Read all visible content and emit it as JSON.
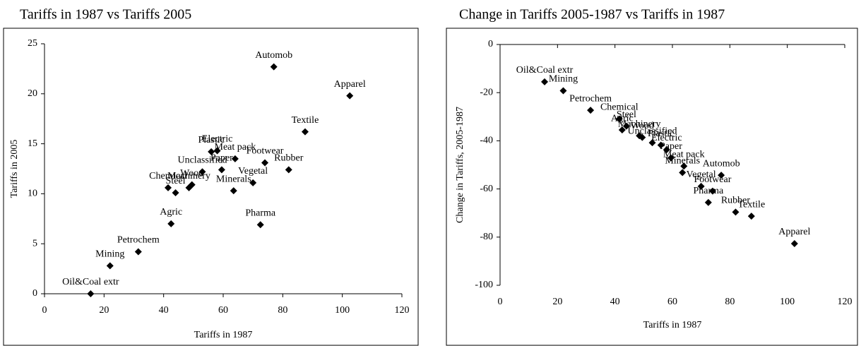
{
  "chart_data": [
    {
      "type": "scatter",
      "title": "Tariffs in 1987 vs Tariffs 2005",
      "xlabel": "Tariffs in 1987",
      "ylabel": "Tariffs in 2005",
      "color": "#000000",
      "labels": [
        "Oil&Coal extr",
        "Mining",
        "Petrochem",
        "Agric",
        "Chemical",
        "Steel",
        "Machinery",
        "Wood",
        "Unclassified",
        "Plastic",
        "Electric",
        "Paper",
        "Meat pack",
        "Minerals",
        "Vegetal",
        "Footwear",
        "Automob",
        "Pharma",
        "Rubber",
        "Textile",
        "Apparel"
      ],
      "x": [
        15.5,
        22,
        31.5,
        42.5,
        41.5,
        44,
        48.5,
        49.5,
        53,
        56,
        58,
        59.5,
        64,
        63.5,
        70,
        74,
        77,
        72.5,
        82,
        87.5,
        102.5
      ],
      "values": [
        0,
        2.8,
        4.2,
        7.0,
        10.6,
        10.1,
        10.6,
        10.9,
        12.2,
        14.2,
        14.3,
        12.4,
        13.5,
        10.3,
        11.1,
        13.1,
        22.7,
        6.9,
        12.4,
        16.2,
        19.8
      ],
      "xlim": [
        0,
        120
      ],
      "ylim": [
        0,
        25
      ],
      "xticks": [
        0,
        20,
        40,
        60,
        80,
        100,
        120
      ],
      "yticks": [
        0,
        5,
        10,
        15,
        20,
        25
      ]
    },
    {
      "type": "scatter",
      "title": "Change in Tariffs 2005-1987 vs Tariffs in 1987",
      "xlabel": "Tariffs in 1987",
      "ylabel": "Change in Tariffs, 2005-1987",
      "color": "#000000",
      "labels": [
        "Oil&Coal extr",
        "Mining",
        "Petrochem",
        "Agric",
        "Chemical",
        "Steel",
        "Machinery",
        "Wood",
        "Unclassified",
        "Plastic",
        "Electric",
        "Paper",
        "Meat pack",
        "Minerals",
        "Vegetal",
        "Footwear",
        "Automob",
        "Pharma",
        "Rubber",
        "Textile",
        "Apparel"
      ],
      "x": [
        15.5,
        22,
        31.5,
        42.5,
        41.5,
        44,
        48.5,
        49.5,
        53,
        56,
        58,
        59.5,
        64,
        63.5,
        70,
        74,
        77,
        72.5,
        82,
        87.5,
        102.5
      ],
      "values": [
        -15.5,
        -19.2,
        -27.3,
        -35.5,
        -30.9,
        -33.9,
        -37.9,
        -38.6,
        -40.8,
        -41.8,
        -43.7,
        -47.1,
        -50.5,
        -53.2,
        -58.9,
        -60.9,
        -54.3,
        -65.6,
        -69.6,
        -71.3,
        -82.7
      ],
      "xlim": [
        0,
        120
      ],
      "ylim": [
        -100,
        0
      ],
      "xticks": [
        0,
        20,
        40,
        60,
        80,
        100,
        120
      ],
      "yticks": [
        -100,
        -80,
        -60,
        -40,
        -20,
        0
      ]
    }
  ]
}
